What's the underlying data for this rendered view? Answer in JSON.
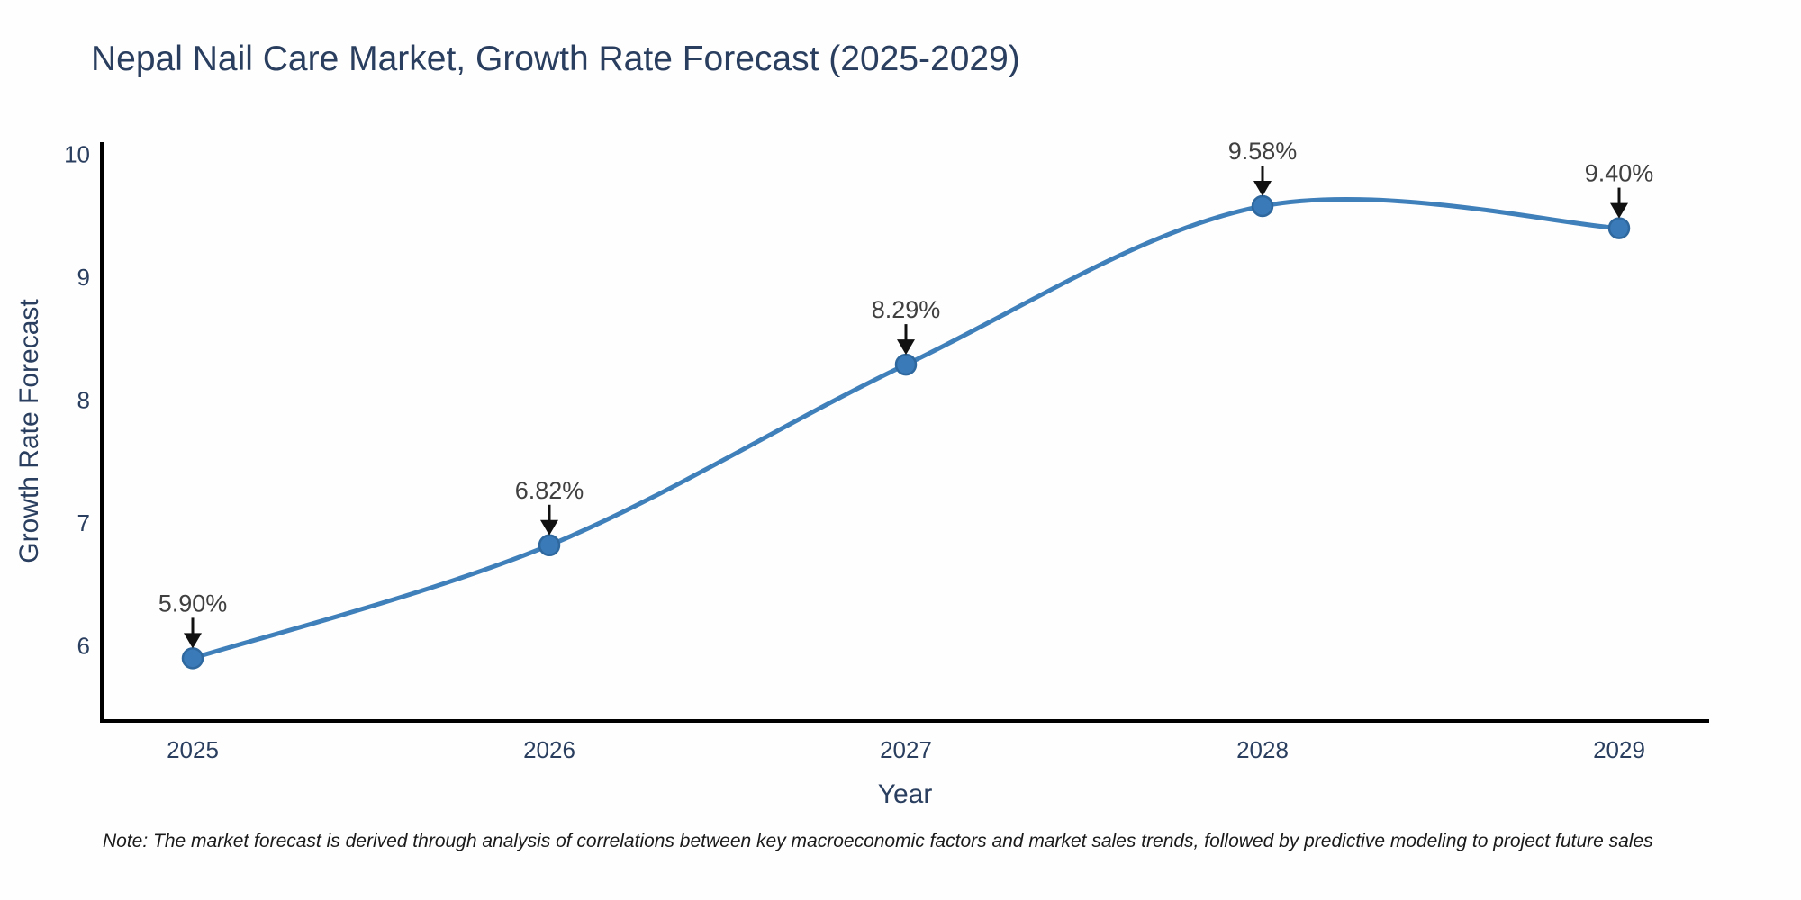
{
  "chart_data": {
    "type": "line",
    "line_shape": "spline",
    "title": "Nepal Nail Care Market, Growth Rate Forecast (2025-2029)",
    "xlabel": "Year",
    "ylabel": "Growth Rate Forecast",
    "categories": [
      "2025",
      "2026",
      "2027",
      "2028",
      "2029"
    ],
    "values": [
      5.9,
      6.82,
      8.29,
      9.58,
      9.4
    ],
    "point_labels": [
      "5.90%",
      "6.82%",
      "8.29%",
      "9.58%",
      "9.40%"
    ],
    "yticks": [
      6,
      7,
      8,
      9,
      10
    ],
    "ylim": [
      5.39,
      10.1
    ],
    "grid": false,
    "legend": "none",
    "note": "Note: The market forecast is derived through analysis of correlations between key macroeconomic factors and market sales trends, followed by predictive modeling to project future sales",
    "colors": {
      "line": "#3f7fba",
      "marker_fill": "#3a7ab8",
      "marker_edge": "#2e689e",
      "axis_line": "#000000",
      "tick_text": "#2a3f5f",
      "title_text": "#2a3f5f",
      "axis_title_text": "#2a3f5f",
      "annotation_text": "#404040",
      "arrow": "#111111",
      "note_text": "#1a1a1a",
      "background": "#fefefe"
    }
  }
}
